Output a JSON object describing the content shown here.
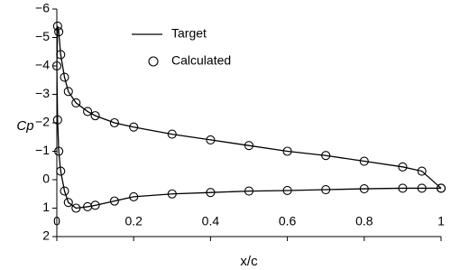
{
  "chart_data": {
    "type": "line",
    "x_label": "x/c",
    "y_label": "Cp",
    "xlim": [
      0,
      1
    ],
    "xticks": [
      0,
      0.2,
      0.4,
      0.6,
      0.8,
      1
    ],
    "ylim": [
      2,
      -6
    ],
    "yticks": [
      {
        "value": -6,
        "label": "−6"
      },
      {
        "value": -5,
        "label": "−5"
      },
      {
        "value": -4,
        "label": "−4"
      },
      {
        "value": -3,
        "label": "−3"
      },
      {
        "value": -2,
        "label": "−2"
      },
      {
        "value": -1,
        "label": "−1"
      },
      0,
      1,
      2
    ],
    "series": [
      {
        "name": "Target",
        "color": "#000000",
        "marker": "none",
        "x": [
          1,
          0.95,
          0.9,
          0.8,
          0.7,
          0.6,
          0.5,
          0.4,
          0.3,
          0.2,
          0.15,
          0.1,
          0.08,
          0.05,
          0.03,
          0.02,
          0.01,
          0.005,
          0.002,
          0,
          0.002,
          0.005,
          0.01,
          0.02,
          0.03,
          0.05,
          0.08,
          0.1,
          0.15,
          0.2,
          0.3,
          0.4,
          0.5,
          0.6,
          0.7,
          0.8,
          0.9,
          0.95,
          1
        ],
        "values": [
          0.3,
          -0.3,
          -0.45,
          -0.65,
          -0.85,
          -1.0,
          -1.2,
          -1.4,
          -1.6,
          -1.85,
          -2.0,
          -2.25,
          -2.4,
          -2.7,
          -3.1,
          -3.6,
          -4.4,
          -5.2,
          -5.4,
          -4.0,
          -2.1,
          -1.0,
          -0.3,
          0.4,
          0.8,
          1.0,
          0.95,
          0.9,
          0.75,
          0.6,
          0.5,
          0.45,
          0.4,
          0.38,
          0.35,
          0.32,
          0.3,
          0.3,
          0.3
        ]
      },
      {
        "name": "Calculated",
        "color": "#000000",
        "marker": "circle",
        "x": [
          1,
          0.95,
          0.9,
          0.8,
          0.7,
          0.6,
          0.5,
          0.4,
          0.3,
          0.2,
          0.15,
          0.1,
          0.08,
          0.05,
          0.03,
          0.02,
          0.01,
          0.005,
          0.002,
          0,
          0.002,
          0.005,
          0.01,
          0.02,
          0.03,
          0.05,
          0.08,
          0.1,
          0.15,
          0.2,
          0.3,
          0.4,
          0.5,
          0.6,
          0.7,
          0.8,
          0.9,
          0.95,
          1
        ],
        "values": [
          0.3,
          -0.3,
          -0.45,
          -0.65,
          -0.85,
          -1.0,
          -1.2,
          -1.4,
          -1.6,
          -1.85,
          -2.0,
          -2.25,
          -2.4,
          -2.7,
          -3.1,
          -3.6,
          -4.4,
          -5.2,
          -5.4,
          -4.0,
          -2.1,
          -1.0,
          -0.3,
          0.4,
          0.8,
          1.0,
          0.95,
          0.9,
          0.75,
          0.6,
          0.5,
          0.45,
          0.4,
          0.38,
          0.35,
          0.32,
          0.3,
          0.3,
          0.3
        ]
      }
    ]
  }
}
